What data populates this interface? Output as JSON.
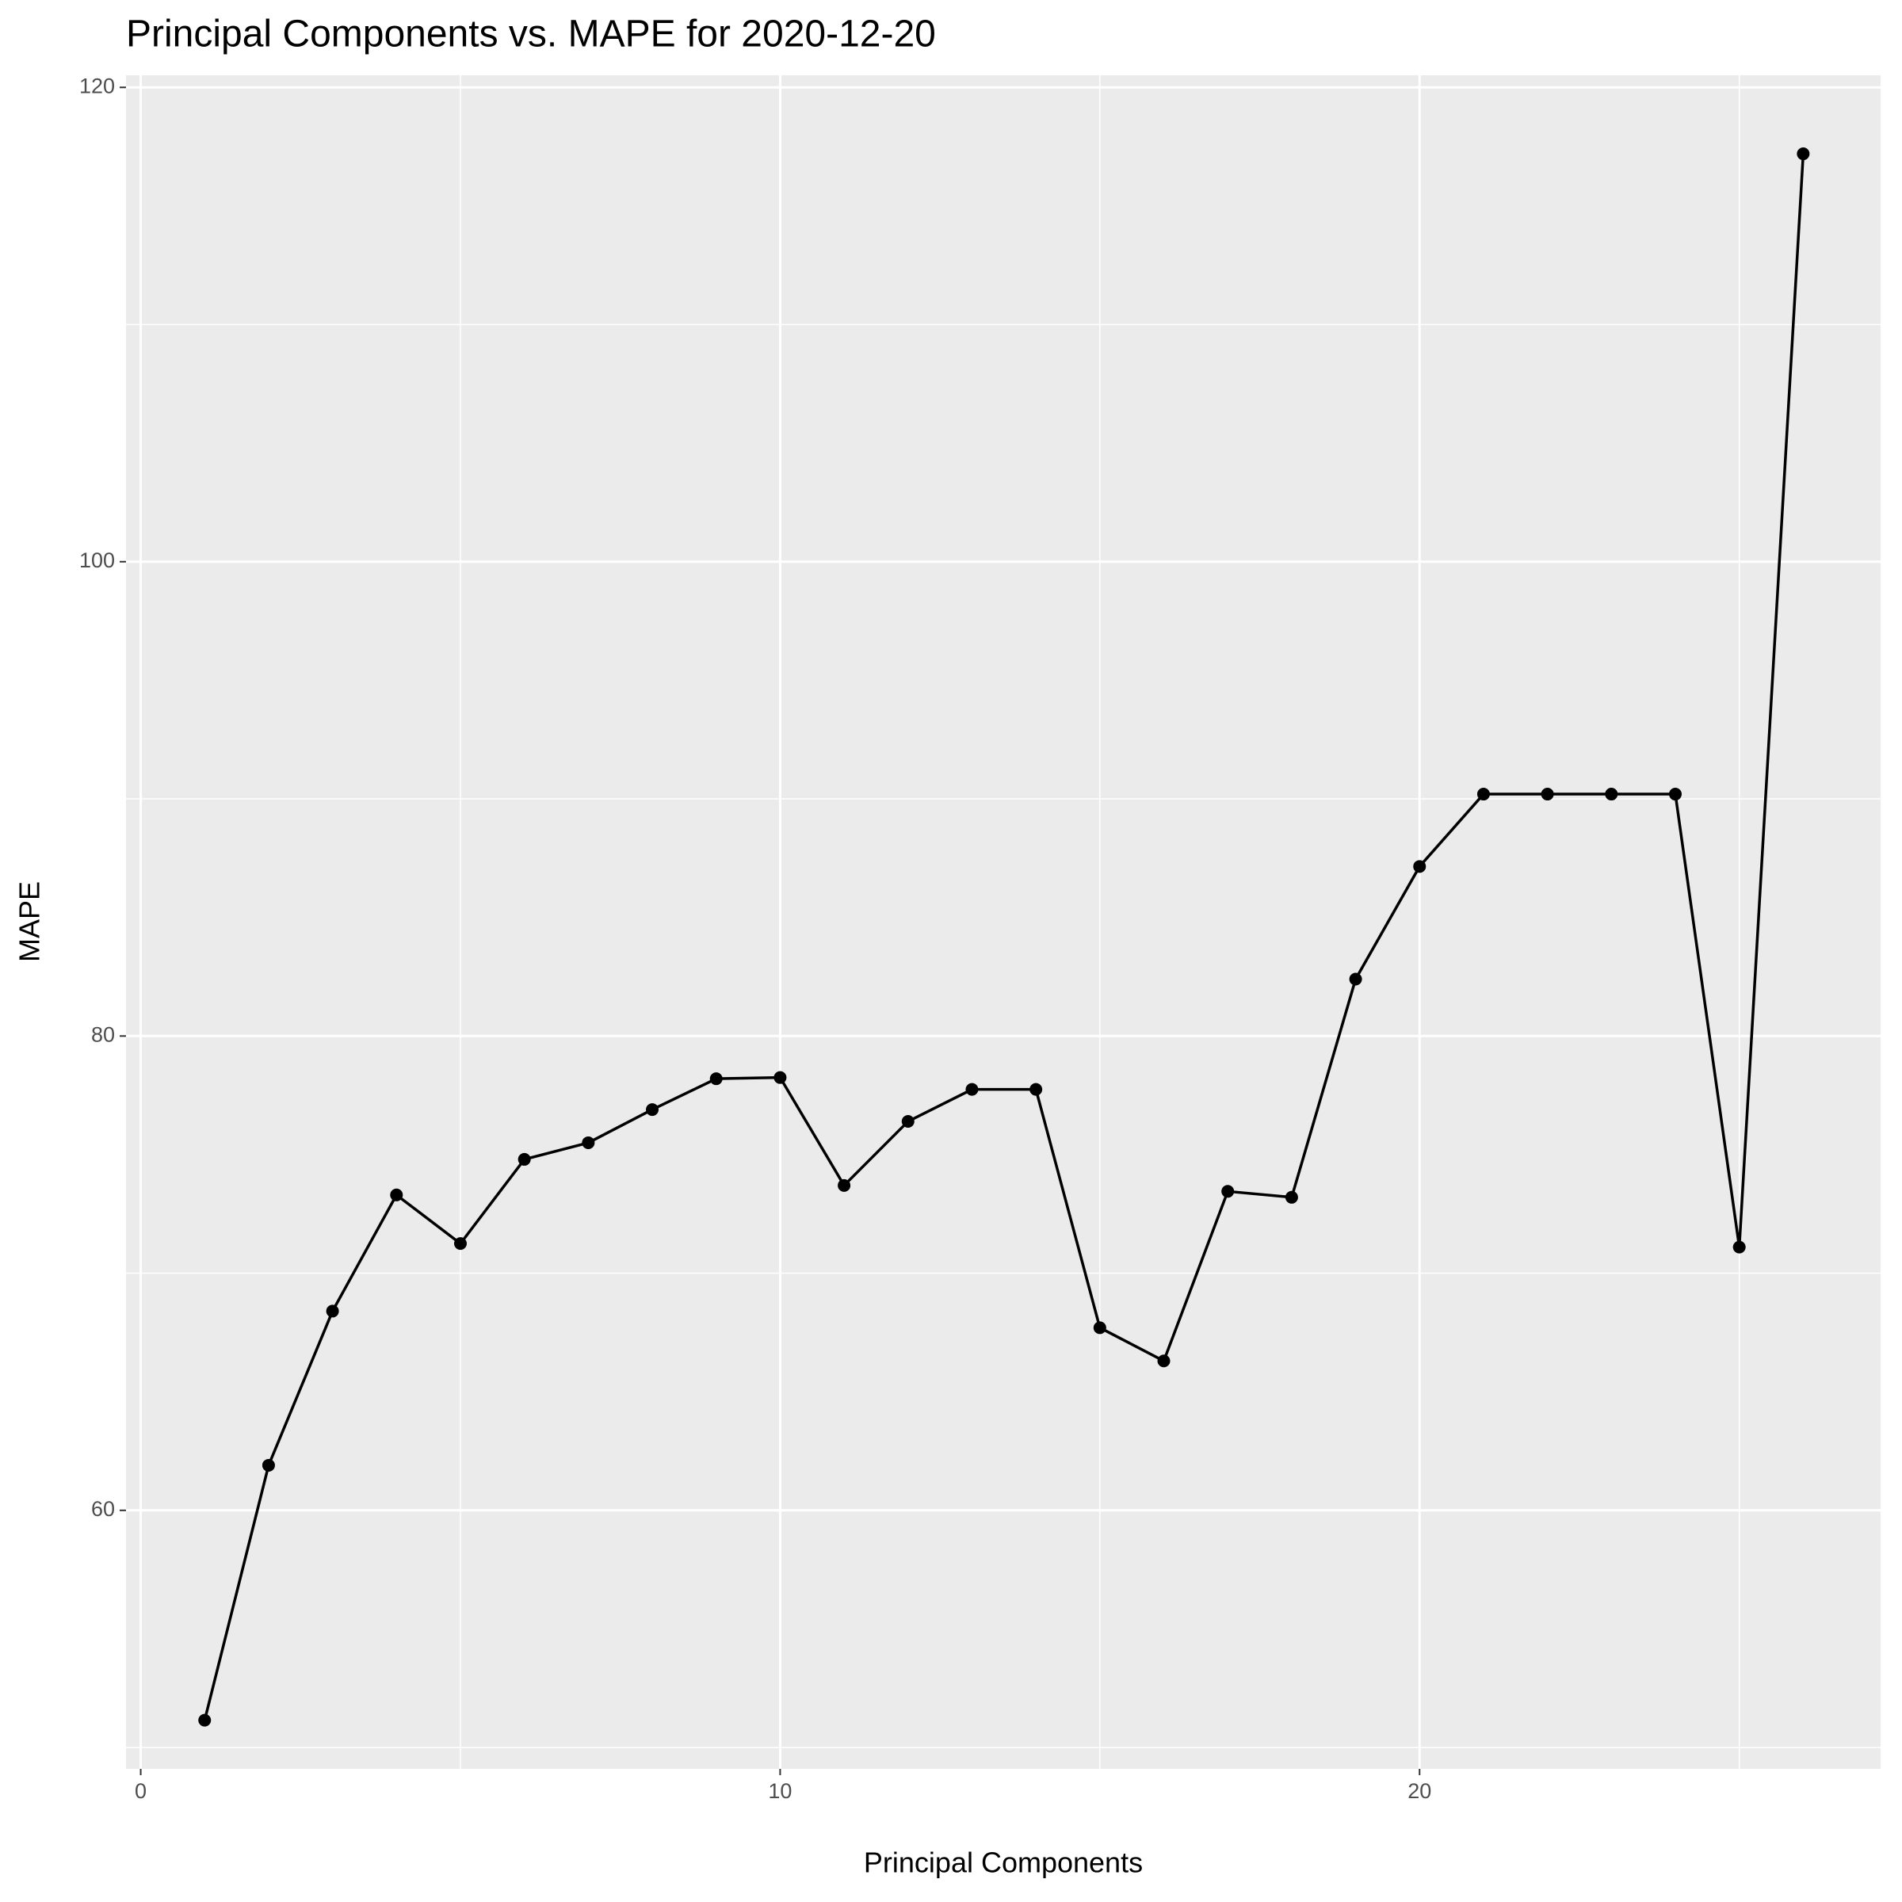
{
  "chart_data": {
    "type": "line",
    "title": "Principal Components vs. MAPE for 2020-12-20",
    "x_label": "Principal Components",
    "y_label": "MAPE",
    "x": [
      1,
      2,
      3,
      4,
      5,
      6,
      7,
      8,
      9,
      10,
      11,
      12,
      13,
      14,
      15,
      16,
      17,
      18,
      19,
      20,
      21,
      22,
      23,
      24,
      25,
      26
    ],
    "values": [
      51.15,
      61.9,
      68.4,
      73.3,
      71.25,
      74.8,
      75.5,
      76.9,
      78.2,
      78.25,
      73.7,
      76.4,
      77.75,
      77.75,
      67.7,
      66.3,
      73.45,
      73.2,
      82.4,
      87.15,
      90.2,
      90.2,
      90.2,
      90.2,
      71.1,
      117.2
    ],
    "color": "#000000",
    "xlim": [
      -0.23,
      27.21
    ],
    "xticks": [
      0,
      10,
      20
    ],
    "ylim": [
      49.1,
      120.51
    ],
    "yticks": [
      60,
      80,
      100,
      120
    ],
    "grid": true
  }
}
